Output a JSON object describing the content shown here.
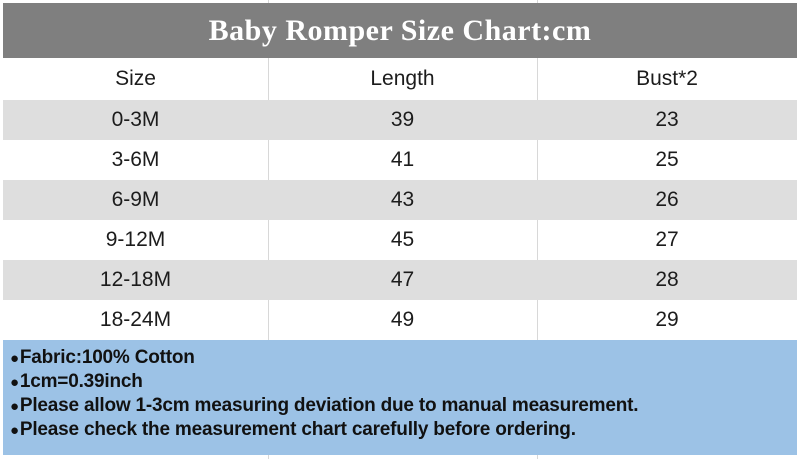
{
  "title": "Baby Romper Size Chart:cm",
  "chart_data": {
    "type": "table",
    "title": "Baby Romper Size Chart:cm",
    "units": "cm",
    "columns": [
      "Size",
      "Length",
      "Bust*2"
    ],
    "rows": [
      [
        "0-3M",
        "39",
        "23"
      ],
      [
        "3-6M",
        "41",
        "25"
      ],
      [
        "6-9M",
        "43",
        "26"
      ],
      [
        "9-12M",
        "45",
        "27"
      ],
      [
        "12-18M",
        "47",
        "28"
      ],
      [
        "18-24M",
        "49",
        "29"
      ]
    ]
  },
  "notes": {
    "bullet": "●",
    "lines": [
      "Fabric:100% Cotton",
      "1cm=0.39inch",
      "Please allow 1-3cm measuring deviation due to manual measurement.",
      "Please check the measurement chart carefully before ordering."
    ]
  },
  "colors": {
    "title_bg": "#7f7f7f",
    "title_text": "#ffffff",
    "row_bg": "#ffffff",
    "row_alt_bg": "#dedede",
    "notes_bg": "#9cc2e6",
    "divider": "#d8d8d8",
    "text": "#1c1c1c"
  }
}
